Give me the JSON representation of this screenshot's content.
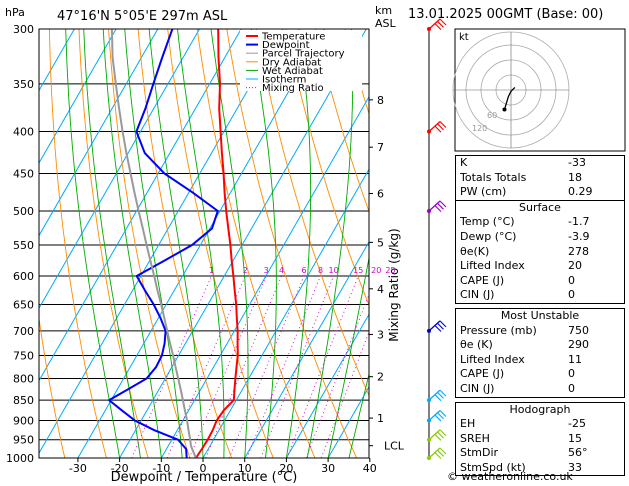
{
  "header": {
    "location": "47°16'N  5°05'E  297m  ASL",
    "datetime": "13.01.2025  00GMT  (Base: 00)"
  },
  "chart_data": {
    "type": "line",
    "title": "47°16'N  5°05'E  297m  ASL",
    "xlabel": "Dewpoint / Temperature (°C)",
    "ylabel": "hPa",
    "y2label": "Mixing Ratio (g/kg)",
    "y3label": "km ASL",
    "pressure_ticks": [
      300,
      350,
      400,
      450,
      500,
      550,
      600,
      650,
      700,
      750,
      800,
      850,
      900,
      950,
      1000
    ],
    "pressure_tick_labels": [
      "300",
      "350",
      "400",
      "450",
      "500",
      "550",
      "600",
      "650",
      "700",
      "750",
      "800",
      "850",
      "900",
      "950",
      "1000"
    ],
    "temperature_ticks": [
      -30,
      -20,
      -10,
      0,
      10,
      20,
      30,
      40
    ],
    "temperature_tick_labels": [
      "-30",
      "-20",
      "-10",
      "0",
      "10",
      "20",
      "30",
      "40"
    ],
    "xlim": [
      -40,
      40
    ],
    "ylim": [
      1000,
      300
    ],
    "yscale": "log",
    "height_ticks": [
      {
        "p": 366,
        "label": "8"
      },
      {
        "p": 418,
        "label": "7"
      },
      {
        "p": 476,
        "label": "6"
      },
      {
        "p": 546,
        "label": "5"
      },
      {
        "p": 622,
        "label": "4"
      },
      {
        "p": 707,
        "label": "3"
      },
      {
        "p": 796,
        "label": "2"
      },
      {
        "p": 894,
        "label": "1"
      },
      {
        "p": 966,
        "label": "LCL"
      }
    ],
    "mixing_ratio_lines": [
      1,
      2,
      3,
      4,
      6,
      8,
      10,
      15,
      20,
      25
    ],
    "mixing_ratio_labels": [
      "1",
      "2",
      "3",
      "4",
      "6",
      "8",
      "10",
      "15",
      "20",
      "25"
    ],
    "legend": [
      "Temperature",
      "Dewpoint",
      "Parcel Trajectory",
      "Dry Adiabat",
      "Wet Adiabat",
      "Isotherm",
      "Mixing Ratio"
    ],
    "legend_colors": [
      "#ff0000",
      "#0000ff",
      "#999999",
      "#ff8c00",
      "#00aa00",
      "#00aaff",
      "#cc00cc"
    ],
    "series": [
      {
        "name": "Temperature",
        "color": "#ff0000",
        "p": [
          1000,
          975,
          950,
          925,
          900,
          875,
          850,
          825,
          800,
          775,
          750,
          725,
          700,
          675,
          650,
          625,
          600,
          575,
          550,
          525,
          500,
          475,
          450,
          425,
          400,
          375,
          350,
          325,
          300
        ],
        "t": [
          -1.7,
          -1.5,
          -1.4,
          -1.5,
          -1.9,
          -1.6,
          -0.6,
          -1.9,
          -3.2,
          -4.5,
          -5.8,
          -7.5,
          -9.2,
          -11.2,
          -13.2,
          -15.5,
          -17.8,
          -20.3,
          -22.8,
          -25.6,
          -28.5,
          -31.4,
          -34.3,
          -37.5,
          -40.8,
          -44.3,
          -47.5,
          -51.5,
          -55.5
        ]
      },
      {
        "name": "Dewpoint",
        "color": "#0000ff",
        "p": [
          1000,
          975,
          950,
          925,
          900,
          875,
          850,
          825,
          800,
          775,
          750,
          725,
          700,
          675,
          650,
          625,
          600,
          575,
          550,
          525,
          500,
          475,
          450,
          425,
          400,
          375,
          350,
          325,
          300
        ],
        "t": [
          -3.9,
          -5.3,
          -8.5,
          -15.5,
          -21.5,
          -26.0,
          -30.5,
          -27.5,
          -24.5,
          -23.8,
          -24.0,
          -25.0,
          -26.5,
          -29.5,
          -33.0,
          -37.0,
          -41.0,
          -36.5,
          -32.0,
          -29.5,
          -30.5,
          -39.0,
          -48.5,
          -56.0,
          -61.0,
          -62.0,
          -63.5,
          -65.0,
          -66.5
        ]
      },
      {
        "name": "Parcel Trajectory",
        "color": "#999999",
        "p": [
          1000,
          966,
          950,
          925,
          900,
          875,
          850,
          825,
          800,
          775,
          750,
          725,
          700,
          675,
          650,
          625,
          600,
          575,
          550,
          525,
          500,
          475,
          450,
          425,
          400,
          375,
          350,
          325,
          300
        ],
        "t": [
          -1.7,
          -4.6,
          -5.6,
          -7.3,
          -9.0,
          -10.9,
          -12.8,
          -14.8,
          -16.9,
          -19.1,
          -21.3,
          -23.7,
          -26.1,
          -28.6,
          -31.2,
          -34.0,
          -36.8,
          -39.8,
          -42.9,
          -46.1,
          -49.5,
          -53.0,
          -56.6,
          -60.4,
          -64.3,
          -68.3,
          -72.5,
          -76.9,
          -81.0
        ]
      }
    ],
    "wind_barbs": {
      "p": [
        300,
        400,
        500,
        700,
        850,
        900,
        950,
        1000
      ],
      "color_by_level": [
        "#ff0000",
        "#ff0000",
        "#9900cc",
        "#0000cc",
        "#00aaff",
        "#00aaff",
        "#88cc00",
        "#88cc00"
      ]
    },
    "hodograph": {
      "label": "kt",
      "ring_labels": [
        "60",
        "120"
      ],
      "u": [
        3,
        2,
        0,
        -2,
        -5
      ],
      "v": [
        2,
        1,
        -1,
        -5,
        -15
      ]
    }
  },
  "indices": {
    "K_label": "K",
    "K": "-33",
    "TT_label": "Totals Totals",
    "TT": "18",
    "PW_label": "PW (cm)",
    "PW": "0.29"
  },
  "surface": {
    "title": "Surface",
    "temp_label": "Temp (°C)",
    "temp": "-1.7",
    "dewp_label": "Dewp (°C)",
    "dewp": "-3.9",
    "thetae_label": "θe(K)",
    "thetae": "278",
    "li_label": "Lifted Index",
    "li": "20",
    "cape_label": "CAPE (J)",
    "cape": "0",
    "cin_label": "CIN (J)",
    "cin": "0"
  },
  "most_unstable": {
    "title": "Most Unstable",
    "pres_label": "Pressure (mb)",
    "pres": "750",
    "thetae_label": "θe (K)",
    "thetae": "290",
    "li_label": "Lifted Index",
    "li": "11",
    "cape_label": "CAPE (J)",
    "cape": "0",
    "cin_label": "CIN (J)",
    "cin": "0"
  },
  "hodograph_table": {
    "title": "Hodograph",
    "eh_label": "EH",
    "eh": "-25",
    "sreh_label": "SREH",
    "sreh": "15",
    "stmdir_label": "StmDir",
    "stmdir": "56°",
    "stmspd_label": "StmSpd (kt)",
    "stmspd": "33"
  },
  "footer": "© weatheronline.co.uk",
  "axis_labels": {
    "hpa": "hPa",
    "km": "km",
    "asl": "ASL"
  }
}
